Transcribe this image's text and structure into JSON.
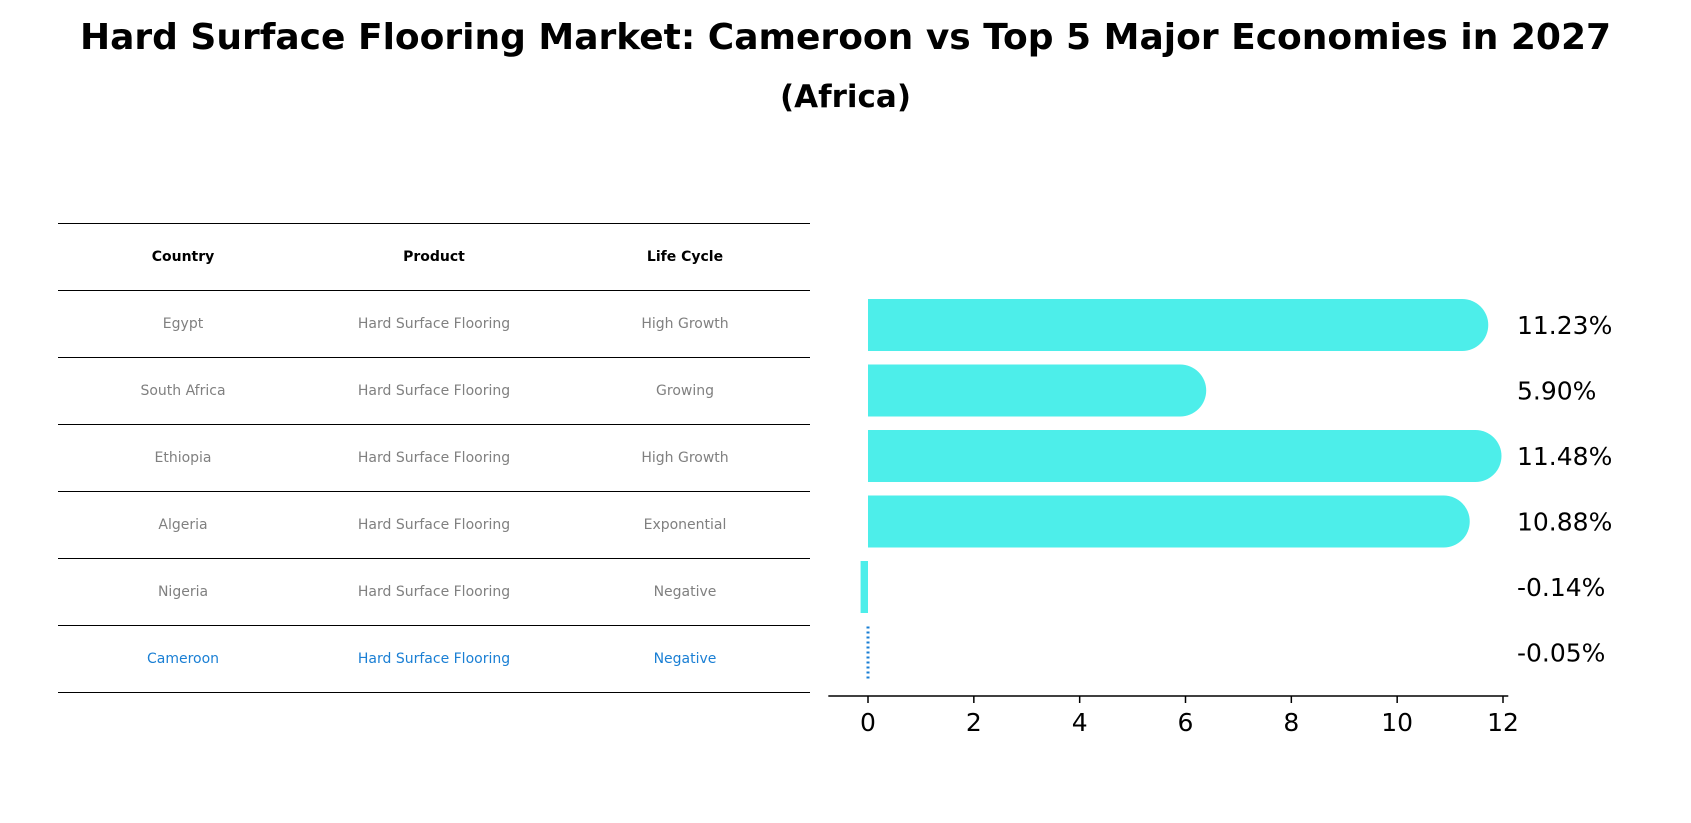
{
  "title": "Hard Surface Flooring Market: Cameroon vs Top 5 Major Economies in 2027",
  "subtitle": "(Africa)",
  "table": {
    "headers": [
      "Country",
      "Product",
      "Life Cycle"
    ],
    "rows": [
      {
        "country": "Egypt",
        "product": "Hard Surface Flooring",
        "life_cycle": "High Growth"
      },
      {
        "country": "South Africa",
        "product": "Hard Surface Flooring",
        "life_cycle": "Growing"
      },
      {
        "country": "Ethiopia",
        "product": "Hard Surface Flooring",
        "life_cycle": "High Growth"
      },
      {
        "country": "Algeria",
        "product": "Hard Surface Flooring",
        "life_cycle": "Exponential"
      },
      {
        "country": "Nigeria",
        "product": "Hard Surface Flooring",
        "life_cycle": "Negative"
      },
      {
        "country": "Cameroon",
        "product": "Hard Surface Flooring",
        "life_cycle": "Negative"
      }
    ],
    "highlight_color": "#1a7fd4",
    "text_color": "#808080"
  },
  "chart_data": {
    "type": "bar",
    "orientation": "horizontal",
    "categories": [
      "Egypt",
      "South Africa",
      "Ethiopia",
      "Algeria",
      "Nigeria",
      "Cameroon"
    ],
    "values": [
      11.23,
      5.9,
      11.48,
      10.88,
      -0.14,
      -0.05
    ],
    "labels": [
      "11.23%",
      "5.90%",
      "11.48%",
      "10.88%",
      "-0.14%",
      "-0.05%"
    ],
    "xlim": [
      -0.75,
      12.1
    ],
    "xticks": [
      0,
      2,
      4,
      6,
      8,
      10,
      12
    ],
    "bar_color": "#4deeea",
    "highlight_color": "#1a7fd4",
    "highlight_index": 5,
    "grid": false
  }
}
